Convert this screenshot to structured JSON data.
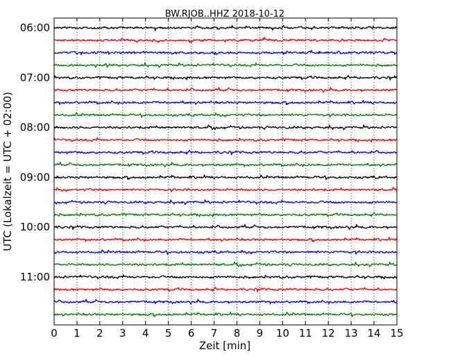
{
  "chart_data": {
    "type": "line",
    "title": "BW.RJOB..HHZ 2018-10-12",
    "xlabel": "Zeit  [min]",
    "ylabel": "UTC (Lokalzeit = UTC + 02:00)",
    "xlim": [
      0,
      15
    ],
    "x_ticks": [
      "0",
      "1",
      "2",
      "3",
      "4",
      "5",
      "6",
      "7",
      "8",
      "9",
      "10",
      "11",
      "12",
      "13",
      "14",
      "15"
    ],
    "y_tick_labels": [
      "06:00",
      "07:00",
      "08:00",
      "09:00",
      "10:00",
      "11:00"
    ],
    "grid": "vertical-dotted",
    "trace_interval_minutes": 15,
    "series": [
      {
        "start": "06:00",
        "color": "#000000"
      },
      {
        "start": "06:15",
        "color": "#ff0000"
      },
      {
        "start": "06:30",
        "color": "#0000ff"
      },
      {
        "start": "06:45",
        "color": "#008000"
      },
      {
        "start": "07:00",
        "color": "#000000"
      },
      {
        "start": "07:15",
        "color": "#ff0000"
      },
      {
        "start": "07:30",
        "color": "#0000ff"
      },
      {
        "start": "07:45",
        "color": "#008000"
      },
      {
        "start": "08:00",
        "color": "#000000"
      },
      {
        "start": "08:15",
        "color": "#ff0000"
      },
      {
        "start": "08:30",
        "color": "#0000ff"
      },
      {
        "start": "08:45",
        "color": "#008000"
      },
      {
        "start": "09:00",
        "color": "#000000"
      },
      {
        "start": "09:15",
        "color": "#ff0000"
      },
      {
        "start": "09:30",
        "color": "#0000ff"
      },
      {
        "start": "09:45",
        "color": "#008000"
      },
      {
        "start": "10:00",
        "color": "#000000"
      },
      {
        "start": "10:15",
        "color": "#ff0000"
      },
      {
        "start": "10:30",
        "color": "#0000ff"
      },
      {
        "start": "10:45",
        "color": "#008000"
      },
      {
        "start": "11:00",
        "color": "#000000"
      },
      {
        "start": "11:15",
        "color": "#ff0000"
      },
      {
        "start": "11:30",
        "color": "#0000ff"
      },
      {
        "start": "11:45",
        "color": "#008000"
      }
    ]
  }
}
